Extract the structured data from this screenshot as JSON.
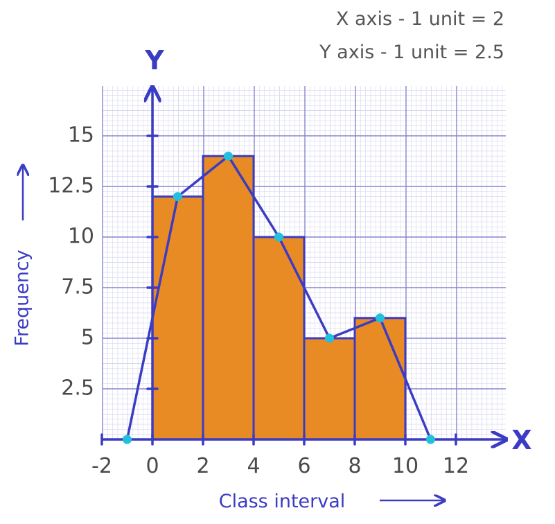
{
  "colors": {
    "axis": "#3b3bc4",
    "bar_fill": "#e88b25",
    "bar_stroke": "#3b3bc4",
    "point": "#22c0dd",
    "grid_major": "#8585d0",
    "grid_minor": "#d6d6ef",
    "text": "#4a4a4a"
  },
  "scale_notes": {
    "x": "X axis - 1 unit = 2",
    "y": "Y axis - 1 unit = 2.5"
  },
  "chart_data": {
    "type": "bar",
    "subtype": "histogram with frequency polygon",
    "xlabel": "Class interval",
    "ylabel": "Frequency",
    "x_axis_letter": "X",
    "y_axis_letter": "Y",
    "grid": true,
    "xlim": [
      -2,
      14
    ],
    "ylim": [
      0,
      17.5
    ],
    "x_ticks": [
      {
        "value": -2,
        "label": "-2"
      },
      {
        "value": 0,
        "label": "0"
      },
      {
        "value": 2,
        "label": "2"
      },
      {
        "value": 4,
        "label": "4"
      },
      {
        "value": 6,
        "label": "6"
      },
      {
        "value": 8,
        "label": "8"
      },
      {
        "value": 10,
        "label": "10"
      },
      {
        "value": 12,
        "label": "12"
      }
    ],
    "y_ticks": [
      {
        "value": 2.5,
        "label": "2.5"
      },
      {
        "value": 5,
        "label": "5"
      },
      {
        "value": 7.5,
        "label": "7.5"
      },
      {
        "value": 10,
        "label": "10"
      },
      {
        "value": 12.5,
        "label": "12.5"
      },
      {
        "value": 15,
        "label": "15"
      }
    ],
    "bins": [
      {
        "start": 0,
        "end": 2,
        "frequency": 12
      },
      {
        "start": 2,
        "end": 4,
        "frequency": 14
      },
      {
        "start": 4,
        "end": 6,
        "frequency": 10
      },
      {
        "start": 6,
        "end": 8,
        "frequency": 5
      },
      {
        "start": 8,
        "end": 10,
        "frequency": 6
      }
    ],
    "frequency_polygon": {
      "x": [
        -1,
        1,
        3,
        5,
        7,
        9,
        11
      ],
      "y": [
        0,
        12,
        14,
        10,
        5,
        6,
        0
      ]
    }
  }
}
